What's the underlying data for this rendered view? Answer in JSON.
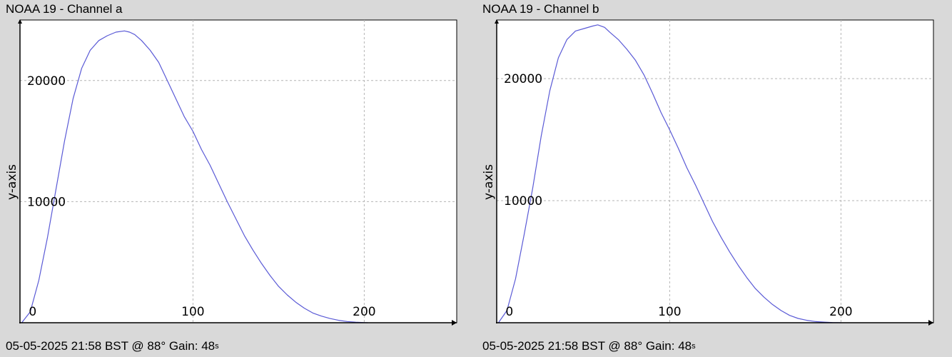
{
  "panels": [
    {
      "title": "NOAA 19 - Channel a",
      "footer": "05-05-2025 21:58 BST @ 88° Gain: 48",
      "footer_clipped_glyph": "s"
    },
    {
      "title": "NOAA 19 - Channel b",
      "footer": "05-05-2025 21:58 BST @ 88° Gain: 48",
      "footer_clipped_glyph": "s"
    }
  ],
  "colors": {
    "background": "#d9d9d9",
    "plot_background": "#ffffff",
    "line": "#5a5ad6",
    "grid": "#b4b4b4",
    "axis": "#000000"
  },
  "chart_data": [
    {
      "type": "line",
      "title": "",
      "xlabel": "",
      "ylabel": "y-axis",
      "xlim": [
        -1,
        254
      ],
      "ylim": [
        0,
        25000
      ],
      "x_ticks": [
        0,
        100,
        200
      ],
      "y_ticks": [
        10000,
        20000
      ],
      "grid": true,
      "legend": "none",
      "series": [
        {
          "x": [
            0,
            5,
            10,
            15,
            20,
            25,
            30,
            35,
            40,
            45,
            50,
            55,
            60,
            63,
            66,
            70,
            75,
            80,
            85,
            90,
            95,
            100,
            105,
            110,
            115,
            120,
            125,
            130,
            135,
            140,
            145,
            150,
            155,
            160,
            165,
            170,
            175,
            180,
            185,
            190,
            195,
            200,
            202
          ],
          "values": [
            0,
            900,
            3500,
            7000,
            11000,
            15000,
            18500,
            21000,
            22500,
            23300,
            23700,
            24000,
            24100,
            24000,
            23800,
            23300,
            22500,
            21500,
            20000,
            18500,
            17000,
            15800,
            14300,
            13000,
            11500,
            10000,
            8600,
            7200,
            6000,
            4900,
            3900,
            3000,
            2300,
            1700,
            1200,
            800,
            550,
            350,
            200,
            100,
            50,
            10,
            0
          ]
        }
      ]
    },
    {
      "type": "line",
      "title": "",
      "xlabel": "",
      "ylabel": "y-axis",
      "xlim": [
        -1,
        254
      ],
      "ylim": [
        0,
        24800
      ],
      "x_ticks": [
        0,
        100,
        200
      ],
      "y_ticks": [
        10000,
        20000
      ],
      "grid": true,
      "legend": "none",
      "series": [
        {
          "x": [
            0,
            5,
            10,
            15,
            20,
            25,
            30,
            35,
            40,
            45,
            50,
            55,
            58,
            62,
            65,
            70,
            75,
            80,
            85,
            90,
            95,
            100,
            105,
            110,
            115,
            120,
            125,
            130,
            135,
            140,
            145,
            150,
            155,
            160,
            165,
            170,
            175,
            180,
            185,
            190,
            195,
            200
          ],
          "values": [
            0,
            1000,
            3600,
            7200,
            11000,
            15300,
            19000,
            21700,
            23200,
            23900,
            24100,
            24300,
            24400,
            24200,
            23800,
            23200,
            22400,
            21500,
            20300,
            18800,
            17200,
            15800,
            14300,
            12700,
            11300,
            9800,
            8300,
            7000,
            5800,
            4700,
            3700,
            2800,
            2100,
            1500,
            1000,
            600,
            350,
            200,
            100,
            50,
            20,
            0
          ]
        }
      ]
    }
  ]
}
